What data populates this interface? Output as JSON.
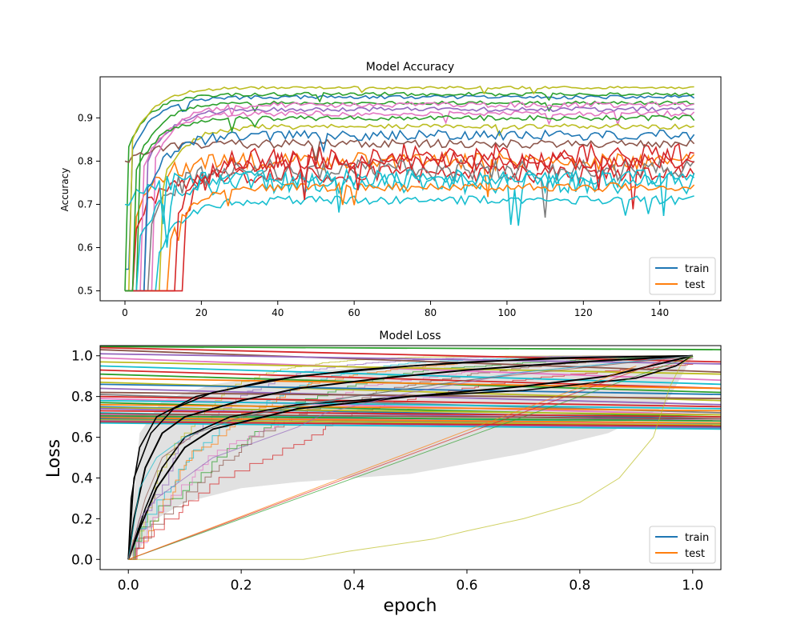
{
  "chart_data": [
    {
      "type": "line",
      "title": "Model Accuracy",
      "xlabel": "",
      "ylabel": "Accuracy",
      "xlim": [
        -6.5,
        156
      ],
      "ylim": [
        0.477,
        0.995
      ],
      "xticks": [
        0,
        20,
        40,
        60,
        80,
        100,
        120,
        140
      ],
      "yticks": [
        0.5,
        0.6,
        0.7,
        0.8,
        0.9
      ],
      "ytick_labels": [
        "0.5",
        "0.6",
        "0.7",
        "0.8",
        "0.9"
      ],
      "grid": false,
      "legend": {
        "placement": "lower-right",
        "entries": [
          "train",
          "test"
        ]
      },
      "series": [
        {
          "name": "train",
          "color": "#1f77b4",
          "start": 0.55,
          "rise_epoch": 2,
          "end": 0.948,
          "noise": 0.004
        },
        {
          "name": "test",
          "color": "#ff7f0e",
          "start": 0.5,
          "rise_epoch": 3,
          "end": 0.8,
          "noise": 0.02
        },
        {
          "color": "#2ca02c",
          "start": 0.5,
          "rise_epoch": 1,
          "end": 0.955,
          "noise": 0.004
        },
        {
          "color": "#2ca02c",
          "start": 0.5,
          "rise_epoch": 4,
          "end": 0.935,
          "noise": 0.004
        },
        {
          "color": "#d62728",
          "start": 0.5,
          "rise_epoch": 16,
          "end": 0.81,
          "noise": 0.03
        },
        {
          "color": "#d62728",
          "start": 0.5,
          "rise_epoch": 3,
          "end": 0.77,
          "noise": 0.02
        },
        {
          "color": "#9467bd",
          "start": 0.5,
          "rise_epoch": 6,
          "end": 0.92,
          "noise": 0.005
        },
        {
          "color": "#8c564b",
          "start": 0.8,
          "rise_epoch": 1,
          "end": 0.84,
          "noise": 0.01
        },
        {
          "color": "#e377c2",
          "start": 0.5,
          "rise_epoch": 8,
          "end": 0.93,
          "noise": 0.006
        },
        {
          "color": "#e377c2",
          "start": 0.5,
          "rise_epoch": 5,
          "end": 0.91,
          "noise": 0.006
        },
        {
          "color": "#7f7f7f",
          "start": 0.5,
          "rise_epoch": 7,
          "end": 0.78,
          "noise": 0.025
        },
        {
          "color": "#bcbd22",
          "start": 0.5,
          "rise_epoch": 10,
          "end": 0.88,
          "noise": 0.006
        },
        {
          "color": "#bcbd22",
          "start": 0.5,
          "rise_epoch": 2,
          "end": 0.97,
          "noise": 0.003
        },
        {
          "color": "#17becf",
          "start": 0.5,
          "rise_epoch": 9,
          "end": 0.71,
          "noise": 0.01
        },
        {
          "color": "#17becf",
          "start": 0.5,
          "rise_epoch": 4,
          "end": 0.75,
          "noise": 0.025
        },
        {
          "color": "#17becf",
          "start": 0.7,
          "rise_epoch": 1,
          "end": 0.76,
          "noise": 0.02
        },
        {
          "color": "#ff7f0e",
          "start": 0.5,
          "rise_epoch": 12,
          "end": 0.74,
          "noise": 0.01
        },
        {
          "color": "#1f77b4",
          "start": 0.5,
          "rise_epoch": 6,
          "end": 0.86,
          "noise": 0.012
        },
        {
          "color": "#d62728",
          "start": 0.5,
          "rise_epoch": 14,
          "end": 0.8,
          "noise": 0.02
        },
        {
          "color": "#2ca02c",
          "start": 0.5,
          "rise_epoch": 3,
          "end": 0.9,
          "noise": 0.006
        }
      ]
    },
    {
      "type": "line",
      "title": "Model Loss",
      "xlabel": "epoch",
      "ylabel": "Loss",
      "xlim": [
        -0.05,
        1.05
      ],
      "ylim": [
        -0.05,
        1.05
      ],
      "xticks": [
        0.0,
        0.2,
        0.4,
        0.6,
        0.8,
        1.0
      ],
      "xtick_labels": [
        "0.0",
        "0.2",
        "0.4",
        "0.6",
        "0.8",
        "1.0"
      ],
      "yticks": [
        0.0,
        0.2,
        0.4,
        0.6,
        0.8,
        1.0
      ],
      "ytick_labels": [
        "0.0",
        "0.2",
        "0.4",
        "0.6",
        "0.8",
        "1.0"
      ],
      "grid": false,
      "legend": {
        "placement": "lower-right",
        "entries": [
          "train",
          "test"
        ]
      },
      "legend_colors": [
        "#1f77b4",
        "#ff7f0e"
      ],
      "band": {
        "color": "#c8c8c8",
        "upper": [
          [
            0,
            0
          ],
          [
            0.02,
            0.62
          ],
          [
            0.06,
            0.78
          ],
          [
            0.15,
            0.86
          ],
          [
            0.3,
            0.92
          ],
          [
            0.5,
            0.96
          ],
          [
            0.7,
            0.98
          ],
          [
            1.0,
            1.0
          ]
        ],
        "lower": [
          [
            0,
            0
          ],
          [
            0.02,
            0.05
          ],
          [
            0.05,
            0.2
          ],
          [
            0.1,
            0.28
          ],
          [
            0.2,
            0.35
          ],
          [
            0.3,
            0.38
          ],
          [
            0.5,
            0.42
          ],
          [
            0.7,
            0.52
          ],
          [
            0.85,
            0.62
          ],
          [
            0.95,
            0.75
          ],
          [
            1.0,
            1.0
          ]
        ]
      },
      "lines": [
        {
          "y0": 1.045,
          "y1": 1.03,
          "color": "#2ca02c"
        },
        {
          "y0": 1.04,
          "y1": 0.97,
          "color": "#d62728"
        },
        {
          "y0": 1.03,
          "y1": 0.92,
          "color": "#8c564b"
        },
        {
          "y0": 1.01,
          "y1": 0.96,
          "color": "#9467bd"
        },
        {
          "y0": 0.99,
          "y1": 0.88,
          "color": "#e377c2"
        },
        {
          "y0": 0.97,
          "y1": 0.91,
          "color": "#bcbd22"
        },
        {
          "y0": 0.95,
          "y1": 0.86,
          "color": "#17becf"
        },
        {
          "y0": 0.93,
          "y1": 0.84,
          "color": "#d62728"
        },
        {
          "y0": 0.91,
          "y1": 0.82,
          "color": "#2ca02c"
        },
        {
          "y0": 0.89,
          "y1": 0.84,
          "color": "#ff7f0e"
        },
        {
          "y0": 0.87,
          "y1": 0.78,
          "color": "#bcbd22"
        },
        {
          "y0": 0.86,
          "y1": 0.81,
          "color": "#1f77b4"
        },
        {
          "y0": 0.84,
          "y1": 0.76,
          "color": "#9467bd"
        },
        {
          "y0": 0.82,
          "y1": 0.79,
          "color": "#8c564b"
        },
        {
          "y0": 0.81,
          "y1": 0.72,
          "color": "#7f7f7f"
        },
        {
          "y0": 0.8,
          "y1": 0.75,
          "color": "#d62728"
        },
        {
          "y0": 0.79,
          "y1": 0.71,
          "color": "#e377c2"
        },
        {
          "y0": 0.78,
          "y1": 0.74,
          "color": "#17becf"
        },
        {
          "y0": 0.77,
          "y1": 0.7,
          "color": "#2ca02c"
        },
        {
          "y0": 0.76,
          "y1": 0.73,
          "color": "#ff7f0e"
        },
        {
          "y0": 0.75,
          "y1": 0.69,
          "color": "#1f77b4"
        },
        {
          "y0": 0.745,
          "y1": 0.71,
          "color": "#bcbd22"
        },
        {
          "y0": 0.74,
          "y1": 0.68,
          "color": "#9467bd"
        },
        {
          "y0": 0.73,
          "y1": 0.7,
          "color": "#d62728"
        },
        {
          "y0": 0.72,
          "y1": 0.665,
          "color": "#17becf"
        },
        {
          "y0": 0.715,
          "y1": 0.69,
          "color": "#8c564b"
        },
        {
          "y0": 0.71,
          "y1": 0.66,
          "color": "#e377c2"
        },
        {
          "y0": 0.705,
          "y1": 0.68,
          "color": "#2ca02c"
        },
        {
          "y0": 0.7,
          "y1": 0.655,
          "color": "#7f7f7f"
        },
        {
          "y0": 0.695,
          "y1": 0.67,
          "color": "#ff7f0e"
        },
        {
          "y0": 0.69,
          "y1": 0.65,
          "color": "#1f77b4"
        },
        {
          "y0": 0.685,
          "y1": 0.66,
          "color": "#bcbd22"
        },
        {
          "y0": 0.68,
          "y1": 0.645,
          "color": "#9467bd"
        },
        {
          "y0": 0.675,
          "y1": 0.655,
          "color": "#d62728"
        },
        {
          "y0": 0.67,
          "y1": 0.64,
          "color": "#17becf"
        }
      ],
      "curves": [
        {
          "color": "#000000",
          "width": 2,
          "points": [
            [
              0,
              0
            ],
            [
              0.01,
              0.2
            ],
            [
              0.03,
              0.45
            ],
            [
              0.06,
              0.62
            ],
            [
              0.1,
              0.7
            ],
            [
              0.2,
              0.78
            ],
            [
              0.3,
              0.84
            ],
            [
              0.45,
              0.89
            ],
            [
              0.6,
              0.93
            ],
            [
              0.8,
              0.97
            ],
            [
              1.0,
              1.0
            ]
          ]
        },
        {
          "color": "#000000",
          "width": 2,
          "points": [
            [
              0,
              0
            ],
            [
              0.02,
              0.15
            ],
            [
              0.05,
              0.35
            ],
            [
              0.1,
              0.55
            ],
            [
              0.15,
              0.64
            ],
            [
              0.3,
              0.74
            ],
            [
              0.5,
              0.8
            ],
            [
              0.7,
              0.85
            ],
            [
              0.85,
              0.9
            ],
            [
              1.0,
              1.0
            ]
          ]
        },
        {
          "color": "#000000",
          "width": 1.6,
          "points": [
            [
              0,
              0
            ],
            [
              0.005,
              0.3
            ],
            [
              0.02,
              0.55
            ],
            [
              0.05,
              0.7
            ],
            [
              0.12,
              0.8
            ],
            [
              0.25,
              0.88
            ],
            [
              0.4,
              0.93
            ],
            [
              0.6,
              0.97
            ],
            [
              0.8,
              0.99
            ],
            [
              1.0,
              1.0
            ]
          ]
        },
        {
          "color": "#000000",
          "width": 1.6,
          "points": [
            [
              0,
              0
            ],
            [
              0.03,
              0.25
            ],
            [
              0.06,
              0.45
            ],
            [
              0.1,
              0.6
            ],
            [
              0.18,
              0.7
            ],
            [
              0.3,
              0.76
            ],
            [
              0.5,
              0.8
            ],
            [
              0.7,
              0.83
            ],
            [
              0.9,
              0.89
            ],
            [
              0.97,
              0.95
            ],
            [
              1.0,
              1.0
            ]
          ]
        },
        {
          "color": "#000000",
          "width": 1.6,
          "points": [
            [
              0,
              0
            ],
            [
              0.01,
              0.4
            ],
            [
              0.04,
              0.62
            ],
            [
              0.08,
              0.74
            ],
            [
              0.15,
              0.82
            ],
            [
              0.3,
              0.9
            ],
            [
              0.5,
              0.95
            ],
            [
              0.75,
              0.99
            ],
            [
              1.0,
              1.0
            ]
          ]
        },
        {
          "color": "#9467bd",
          "width": 1,
          "points": [
            [
              0,
              0
            ],
            [
              0.02,
              0.2
            ],
            [
              0.05,
              0.3
            ],
            [
              0.1,
              0.4
            ],
            [
              0.15,
              0.5
            ],
            [
              0.2,
              0.55
            ],
            [
              0.25,
              0.6
            ],
            [
              0.3,
              0.65
            ],
            [
              0.35,
              0.72
            ],
            [
              0.5,
              0.82
            ],
            [
              0.7,
              0.92
            ],
            [
              1.0,
              1.0
            ]
          ]
        },
        {
          "color": "#2ca02c",
          "width": 1,
          "points": [
            [
              0,
              0
            ],
            [
              1.0,
              1.0
            ]
          ]
        },
        {
          "color": "#d62728",
          "width": 1,
          "points": [
            [
              0,
              0
            ],
            [
              0.95,
              0.98
            ]
          ]
        },
        {
          "color": "#ff7f0e",
          "width": 1,
          "points": [
            [
              0,
              0
            ],
            [
              0.9,
              0.95
            ]
          ]
        },
        {
          "color": "#bcbd22",
          "width": 1,
          "points": [
            [
              0,
              0
            ],
            [
              0.31,
              0.0
            ],
            [
              0.39,
              0.04
            ],
            [
              0.54,
              0.1
            ],
            [
              0.6,
              0.14
            ],
            [
              0.7,
              0.2
            ],
            [
              0.8,
              0.28
            ],
            [
              0.87,
              0.4
            ],
            [
              0.93,
              0.6
            ],
            [
              0.96,
              0.85
            ],
            [
              0.98,
              0.96
            ],
            [
              1.0,
              1.0
            ]
          ]
        },
        {
          "color": "#17becf",
          "width": 1,
          "points": [
            [
              0,
              0
            ],
            [
              0.02,
              0.35
            ],
            [
              0.05,
              0.5
            ],
            [
              0.1,
              0.6
            ],
            [
              0.2,
              0.7
            ],
            [
              0.4,
              0.8
            ],
            [
              0.7,
              0.92
            ],
            [
              1.0,
              1.0
            ]
          ]
        },
        {
          "color": "#8c564b",
          "width": 1,
          "points": [
            [
              0,
              0
            ],
            [
              0.01,
              0.1
            ],
            [
              0.03,
              0.3
            ],
            [
              0.06,
              0.5
            ],
            [
              0.12,
              0.62
            ],
            [
              0.2,
              0.7
            ],
            [
              0.35,
              0.78
            ],
            [
              0.6,
              0.88
            ],
            [
              1.0,
              1.0
            ]
          ]
        }
      ]
    }
  ]
}
